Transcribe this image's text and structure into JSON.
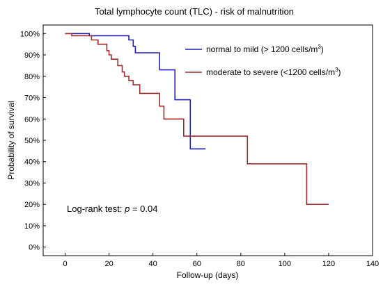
{
  "chart_data": {
    "type": "line",
    "step": true,
    "title": "Total lymphocyte count (TLC) - risk of malnutrition",
    "xlabel": "Follow-up (days)",
    "ylabel": "Probability of survival",
    "xlim": [
      -10,
      140
    ],
    "ylim": [
      -4,
      104
    ],
    "xticks": [
      0,
      20,
      40,
      60,
      80,
      100,
      120,
      140
    ],
    "yticks": [
      0,
      10,
      20,
      30,
      40,
      50,
      60,
      70,
      80,
      90,
      100
    ],
    "ytick_suffix": "%",
    "grid": false,
    "legend_position": "top-right",
    "annotation": {
      "prefix": "Log-rank test: ",
      "italic": "p",
      "suffix": " = 0.04"
    },
    "series": [
      {
        "name_text": "normal to mild (> 1200 cells/m",
        "name_sup": "3",
        "name_after": ")",
        "color": "#1f1fbf",
        "points": [
          [
            0,
            100
          ],
          [
            11,
            100
          ],
          [
            11,
            99
          ],
          [
            29,
            99
          ],
          [
            29,
            97
          ],
          [
            31,
            97
          ],
          [
            31,
            94
          ],
          [
            32,
            94
          ],
          [
            32,
            91
          ],
          [
            43,
            91
          ],
          [
            43,
            83
          ],
          [
            50,
            83
          ],
          [
            50,
            69
          ],
          [
            57,
            69
          ],
          [
            57,
            46
          ],
          [
            64,
            46
          ]
        ]
      },
      {
        "name_text": "moderate to severe (<1200 cells/m",
        "name_sup": "3",
        "name_after": ")",
        "color": "#a52a2a",
        "points": [
          [
            0,
            100
          ],
          [
            3,
            100
          ],
          [
            3,
            99
          ],
          [
            12,
            99
          ],
          [
            12,
            97
          ],
          [
            15,
            97
          ],
          [
            15,
            95
          ],
          [
            19,
            95
          ],
          [
            19,
            92
          ],
          [
            20,
            92
          ],
          [
            20,
            90
          ],
          [
            21,
            90
          ],
          [
            21,
            88
          ],
          [
            24,
            88
          ],
          [
            24,
            85
          ],
          [
            26,
            85
          ],
          [
            26,
            82
          ],
          [
            27,
            82
          ],
          [
            27,
            80
          ],
          [
            29,
            80
          ],
          [
            29,
            78
          ],
          [
            31,
            78
          ],
          [
            31,
            76
          ],
          [
            34,
            76
          ],
          [
            34,
            72
          ],
          [
            43,
            72
          ],
          [
            43,
            66
          ],
          [
            45,
            66
          ],
          [
            45,
            60
          ],
          [
            54,
            60
          ],
          [
            54,
            52
          ],
          [
            83,
            52
          ],
          [
            83,
            39
          ],
          [
            110,
            39
          ],
          [
            110,
            20
          ],
          [
            120,
            20
          ]
        ]
      }
    ]
  }
}
